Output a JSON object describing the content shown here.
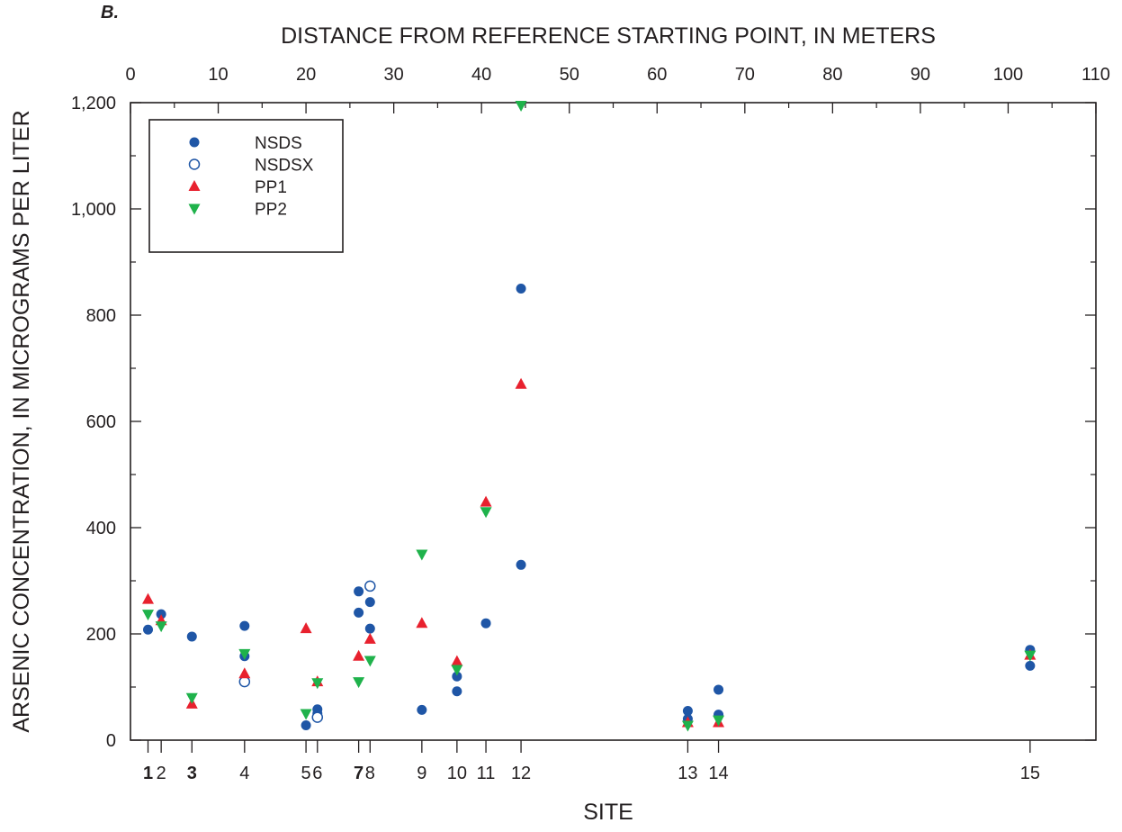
{
  "panel_label": "B.",
  "colors": {
    "nsds": "#1f56a6",
    "nsdsx": "#1f56a6",
    "pp1": "#e8212e",
    "pp2": "#1fb24b",
    "axis": "#231f20"
  },
  "chart_data": {
    "type": "scatter",
    "title": "",
    "top_axis_label": "DISTANCE FROM REFERENCE STARTING POINT, IN METERS",
    "xlabel": "SITE",
    "ylabel": "ARSENIC CONCENTRATION, IN MICROGRAMS PER LITER",
    "xlim": [
      0,
      110
    ],
    "ylim": [
      0,
      1200
    ],
    "x_ticks": [
      "0",
      "10",
      "20",
      "30",
      "40",
      "50",
      "60",
      "70",
      "80",
      "90",
      "100",
      "110"
    ],
    "y_ticks": [
      "0",
      "200",
      "400",
      "600",
      "800",
      "1,000",
      "1,200"
    ],
    "grid": false,
    "legend_position": "top-left",
    "sites": [
      {
        "label": "1",
        "x": 2,
        "bold": true
      },
      {
        "label": "2",
        "x": 3.5,
        "bold": false
      },
      {
        "label": "3",
        "x": 7,
        "bold": true
      },
      {
        "label": "4",
        "x": 13,
        "bold": false
      },
      {
        "label": "5",
        "x": 20,
        "bold": false
      },
      {
        "label": "6",
        "x": 21.3,
        "bold": false
      },
      {
        "label": "7",
        "x": 26,
        "bold": true
      },
      {
        "label": "8",
        "x": 27.3,
        "bold": false
      },
      {
        "label": "9",
        "x": 33.2,
        "bold": false
      },
      {
        "label": "10",
        "x": 37.2,
        "bold": false
      },
      {
        "label": "11",
        "x": 40.5,
        "bold": false
      },
      {
        "label": "12",
        "x": 44.5,
        "bold": false
      },
      {
        "label": "13",
        "x": 63.5,
        "bold": false
      },
      {
        "label": "14",
        "x": 67,
        "bold": false
      },
      {
        "label": "15",
        "x": 102.5,
        "bold": false
      }
    ],
    "series": [
      {
        "name": "NSDS",
        "marker": "filled-circle",
        "points": [
          [
            2,
            208
          ],
          [
            3.5,
            237
          ],
          [
            7,
            195
          ],
          [
            13,
            215
          ],
          [
            13,
            158
          ],
          [
            20,
            28
          ],
          [
            21.3,
            58
          ],
          [
            21.3,
            50
          ],
          [
            26,
            280
          ],
          [
            26,
            240
          ],
          [
            27.3,
            260
          ],
          [
            27.3,
            210
          ],
          [
            33.2,
            57
          ],
          [
            37.2,
            120
          ],
          [
            37.2,
            92
          ],
          [
            40.5,
            220
          ],
          [
            44.5,
            850
          ],
          [
            44.5,
            330
          ],
          [
            63.5,
            55
          ],
          [
            63.5,
            40
          ],
          [
            67,
            95
          ],
          [
            67,
            48
          ],
          [
            102.5,
            170
          ],
          [
            102.5,
            140
          ]
        ]
      },
      {
        "name": "NSDSX",
        "marker": "open-circle",
        "points": [
          [
            13,
            110
          ],
          [
            21.3,
            43
          ],
          [
            27.3,
            290
          ]
        ]
      },
      {
        "name": "PP1",
        "marker": "triangle-up",
        "points": [
          [
            2,
            265
          ],
          [
            3.5,
            225
          ],
          [
            7,
            68
          ],
          [
            13,
            125
          ],
          [
            20,
            210
          ],
          [
            21.3,
            110
          ],
          [
            26,
            158
          ],
          [
            27.3,
            190
          ],
          [
            33.2,
            220
          ],
          [
            37.2,
            148
          ],
          [
            40.5,
            448
          ],
          [
            44.5,
            670
          ],
          [
            63.5,
            33
          ],
          [
            67,
            33
          ],
          [
            102.5,
            160
          ]
        ]
      },
      {
        "name": "PP2",
        "marker": "triangle-down",
        "points": [
          [
            2,
            237
          ],
          [
            3.5,
            215
          ],
          [
            7,
            80
          ],
          [
            13,
            163
          ],
          [
            20,
            50
          ],
          [
            21.3,
            108
          ],
          [
            26,
            110
          ],
          [
            27.3,
            150
          ],
          [
            33.2,
            350
          ],
          [
            37.2,
            133
          ],
          [
            40.5,
            430
          ],
          [
            44.5,
            1195
          ],
          [
            63.5,
            28
          ],
          [
            67,
            38
          ],
          [
            102.5,
            160
          ]
        ]
      }
    ]
  }
}
